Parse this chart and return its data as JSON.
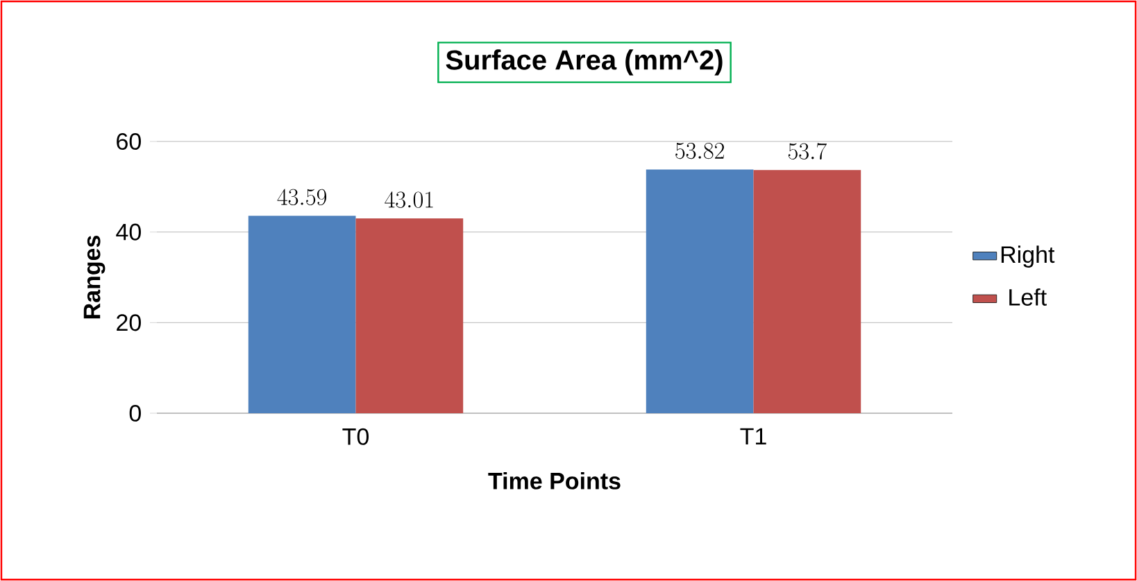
{
  "chart_data": {
    "type": "bar",
    "title": "Surface Area (mm^2)",
    "xlabel": "Time Points",
    "ylabel": "Ranges",
    "categories": [
      "T0",
      "T1"
    ],
    "series": [
      {
        "name": "Right",
        "color": "#4f81bd",
        "values": [
          43.59,
          53.82
        ]
      },
      {
        "name": "Left",
        "color": "#c0504d",
        "values": [
          43.01,
          53.7
        ]
      }
    ],
    "ylim": [
      0,
      60
    ],
    "yticks": [
      0,
      20,
      40,
      60
    ],
    "grid": "y",
    "legend": "right",
    "data_labels": true
  }
}
